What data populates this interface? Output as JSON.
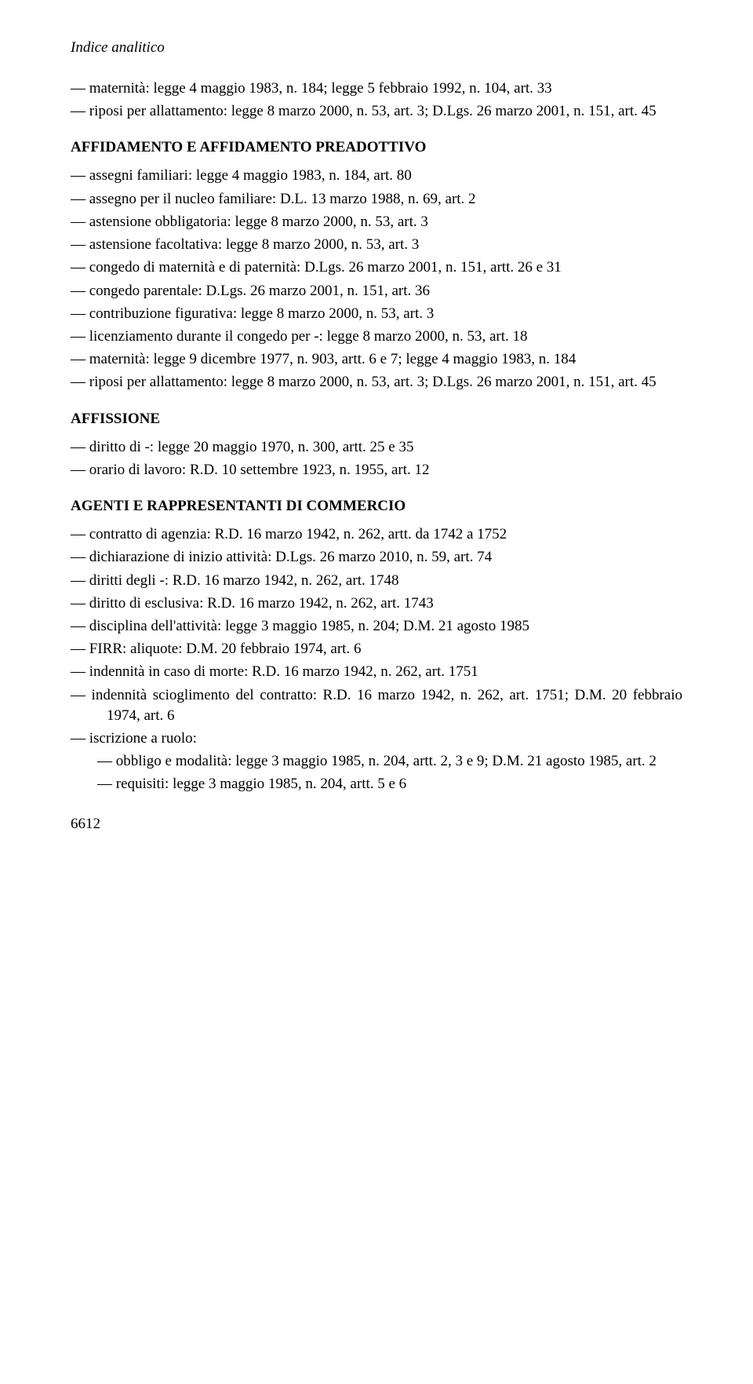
{
  "runningHeader": "Indice analitico",
  "pageNumber": "6612",
  "block1": {
    "e1": "— maternità: legge 4 maggio 1983, n. 184; legge 5 febbraio 1992, n. 104, art. 33",
    "e2": "— riposi per allattamento: legge 8 marzo 2000, n. 53, art. 3; D.Lgs. 26 marzo 2001, n. 151, art. 45"
  },
  "heading1": "AFFIDAMENTO E AFFIDAMENTO PREADOTTIVO",
  "block2": {
    "e1": "— assegni familiari: legge 4 maggio 1983, n. 184, art. 80",
    "e2": "— assegno per il nucleo familiare: D.L. 13 marzo 1988, n. 69, art. 2",
    "e3": "— astensione obbligatoria: legge 8 marzo 2000, n. 53, art. 3",
    "e4": "— astensione facoltativa: legge 8 marzo 2000, n. 53, art. 3",
    "e5": "— congedo di maternità e di paternità: D.Lgs. 26 marzo 2001, n. 151, artt. 26 e 31",
    "e6": "— congedo parentale: D.Lgs. 26 marzo 2001, n. 151, art. 36",
    "e7": "— contribuzione figurativa: legge 8 marzo 2000, n. 53, art. 3",
    "e8": "— licenziamento durante il congedo per -: legge 8 marzo 2000, n. 53, art. 18",
    "e9": "— maternità: legge 9 dicembre 1977, n. 903, artt. 6 e 7; legge 4 maggio 1983, n. 184",
    "e10": "— riposi per allattamento: legge 8 marzo 2000, n. 53, art. 3; D.Lgs. 26 marzo 2001, n. 151, art. 45"
  },
  "heading2": "AFFISSIONE",
  "block3": {
    "e1": "— diritto di -: legge 20 maggio 1970, n. 300, artt. 25 e 35",
    "e2": "— orario di lavoro: R.D. 10 settembre 1923, n. 1955, art. 12"
  },
  "heading3": "AGENTI E RAPPRESENTANTI DI COMMERCIO",
  "block4": {
    "e1": "— contratto di agenzia: R.D. 16 marzo 1942, n. 262, artt. da 1742 a 1752",
    "e2": "— dichiarazione di inizio attività: D.Lgs. 26 marzo 2010, n. 59, art. 74",
    "e3": "— diritti degli -: R.D. 16 marzo 1942, n. 262, art. 1748",
    "e4": "— diritto di esclusiva: R.D. 16 marzo 1942, n. 262, art. 1743",
    "e5": "— disciplina dell'attività: legge 3 maggio 1985, n. 204; D.M. 21 agosto 1985",
    "e6": "— FIRR: aliquote: D.M. 20 febbraio 1974, art. 6",
    "e7": "— indennità in caso di morte: R.D. 16 marzo 1942, n. 262, art. 1751",
    "e8": "— indennità scioglimento del contratto: R.D. 16 marzo 1942, n. 262, art. 1751; D.M. 20 febbraio 1974, art. 6",
    "e9": "— iscrizione a ruolo:",
    "s1": "— obbligo e modalità: legge 3 maggio 1985, n. 204, artt. 2, 3 e 9; D.M. 21 agosto 1985, art. 2",
    "s2": "— requisiti: legge 3 maggio 1985, n. 204, artt. 5 e 6"
  }
}
